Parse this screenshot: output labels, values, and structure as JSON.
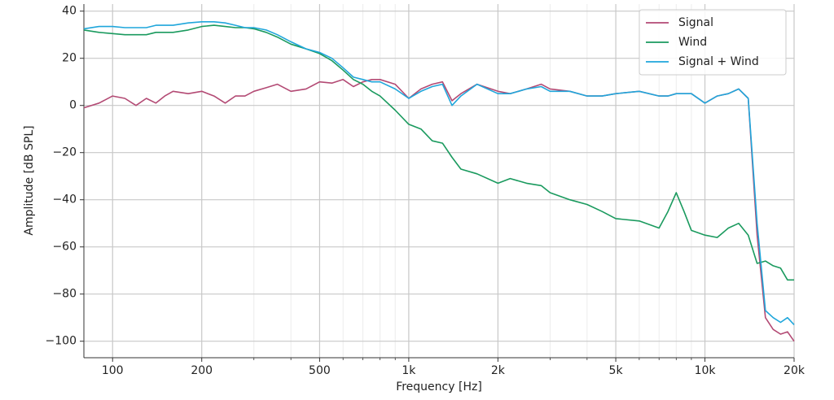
{
  "chart_data": {
    "type": "line",
    "xlabel": "Frequency [Hz]",
    "ylabel": "Amplitude [dB SPL]",
    "xscale": "log",
    "grid": true,
    "legend": "upper right",
    "xlim": [
      80,
      20000
    ],
    "ylim": [
      -107,
      43
    ],
    "xticks": [
      100,
      200,
      500,
      {
        "value": 1000,
        "label": "1k"
      },
      {
        "value": 2000,
        "label": "2k"
      },
      {
        "value": 5000,
        "label": "5k"
      },
      {
        "value": 10000,
        "label": "10k"
      },
      {
        "value": 20000,
        "label": "20k"
      }
    ],
    "xminorticks": [
      300,
      400,
      600,
      700,
      800,
      900,
      3000,
      4000,
      6000,
      7000,
      8000,
      9000
    ],
    "yticks": [
      {
        "value": -100,
        "label": "−100"
      },
      {
        "value": -80,
        "label": "−80"
      },
      {
        "value": -60,
        "label": "−60"
      },
      {
        "value": -40,
        "label": "−40"
      },
      {
        "value": -20,
        "label": "−20"
      },
      0,
      20,
      40
    ],
    "x": [
      80,
      90,
      100,
      110,
      120,
      130,
      140,
      150,
      160,
      180,
      200,
      220,
      240,
      260,
      280,
      300,
      330,
      360,
      400,
      450,
      500,
      550,
      600,
      650,
      700,
      750,
      800,
      900,
      1000,
      1100,
      1200,
      1300,
      1400,
      1500,
      1700,
      2000,
      2200,
      2500,
      2800,
      3000,
      3500,
      4000,
      4500,
      5000,
      6000,
      7000,
      7500,
      8000,
      8500,
      9000,
      10000,
      11000,
      12000,
      13000,
      14000,
      15000,
      16000,
      17000,
      18000,
      19000,
      20000
    ],
    "series": [
      {
        "name": "Signal",
        "color": "#b34a74",
        "values": [
          -1,
          1,
          4,
          3,
          0,
          3,
          1,
          4,
          6,
          5,
          6,
          4,
          1,
          4,
          4,
          6,
          7.5,
          9,
          6,
          7,
          10,
          9.5,
          11,
          8,
          10,
          11,
          11,
          9,
          3,
          7,
          9,
          10,
          2,
          5,
          9,
          6,
          5,
          7,
          9,
          7,
          6,
          4,
          4,
          5,
          6,
          4,
          4,
          5,
          5,
          5,
          1,
          4,
          5,
          7,
          3,
          -55,
          -90,
          -95,
          -97,
          -96,
          -100
        ]
      },
      {
        "name": "Wind",
        "color": "#1a9a5e",
        "values": [
          32,
          31,
          30.5,
          30,
          30,
          30,
          31,
          31,
          31,
          32,
          33.5,
          34,
          33.5,
          33,
          33,
          32.5,
          31,
          29,
          26,
          24,
          22,
          19,
          15,
          11,
          9,
          6,
          4,
          -2,
          -8,
          -10,
          -15,
          -16,
          -22,
          -27,
          -29,
          -33,
          -31,
          -33,
          -34,
          -37,
          -40,
          -42,
          -45,
          -48,
          -49,
          -52,
          -45,
          -37,
          -45,
          -53,
          -55,
          -56,
          -52,
          -50,
          -55,
          -67,
          -66,
          -68,
          -69,
          -74,
          -74
        ]
      },
      {
        "name": "Signal + Wind",
        "color": "#1fa6db",
        "values": [
          32.5,
          33.5,
          33.5,
          33,
          33,
          33,
          34,
          34,
          34,
          35,
          35.5,
          35.5,
          35,
          34,
          33,
          33,
          32,
          30,
          27,
          24,
          22.5,
          20,
          16,
          12,
          11,
          10,
          10,
          7,
          3,
          6,
          8,
          9,
          0,
          4,
          9,
          5,
          5,
          7,
          8,
          6,
          6,
          4,
          4,
          5,
          6,
          4,
          4,
          5,
          5,
          5,
          1,
          4,
          5,
          7,
          3,
          -50,
          -87,
          -90,
          -92,
          -90,
          -93
        ]
      }
    ]
  }
}
